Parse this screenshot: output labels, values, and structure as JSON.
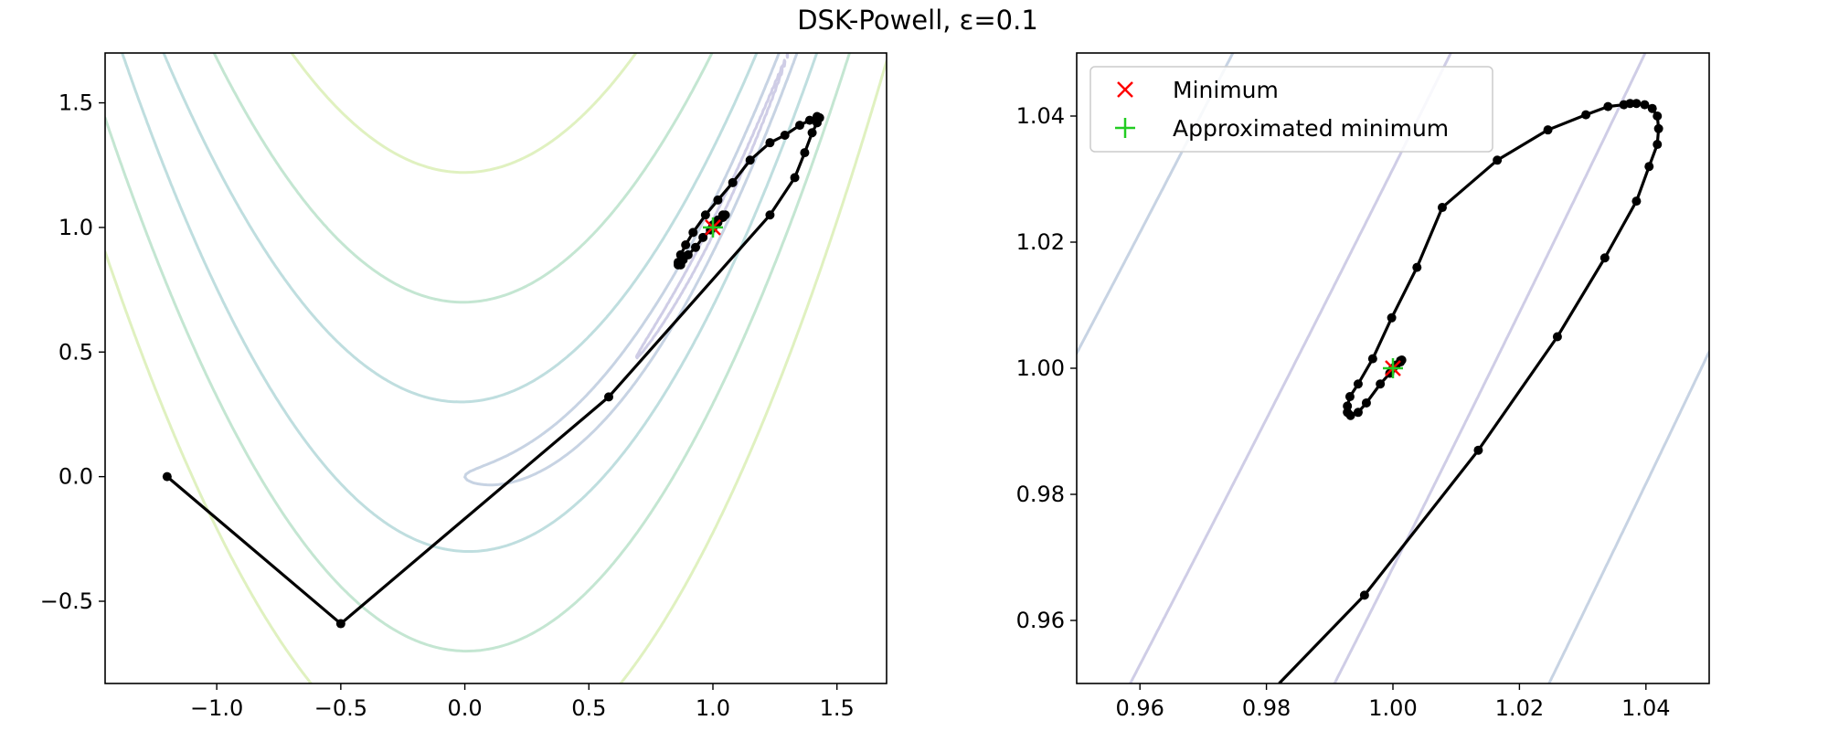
{
  "figure": {
    "title": "DSK-Powell, ε=0.1"
  },
  "colors": {
    "path": "#000000",
    "minimum_marker": "#ff0000",
    "approx_marker": "#22cc22",
    "contour_levels": [
      "#cfcde6",
      "#c7d3e3",
      "#bfdedf",
      "#c4e6d2",
      "#e0f1c0"
    ]
  },
  "chart_data": [
    {
      "type": "line",
      "name": "overview",
      "xlim": [
        -1.45,
        1.7
      ],
      "ylim": [
        -0.83,
        1.7
      ],
      "xticks": [
        -1.0,
        -0.5,
        0.0,
        0.5,
        1.0,
        1.5
      ],
      "xtick_labels": [
        "−1.0",
        "−0.5",
        "0.0",
        "0.5",
        "1.0",
        "1.5"
      ],
      "yticks": [
        -0.5,
        0.0,
        0.5,
        1.0,
        1.5
      ],
      "ytick_labels": [
        "−0.5",
        "0.0",
        "0.5",
        "1.0",
        "1.5"
      ],
      "grid": false,
      "contours": "Rosenbrock function f(x,y)=(1−x)²+100(y−x²)² level curves",
      "path": [
        [
          -1.2,
          0.0
        ],
        [
          -0.5,
          -0.59
        ],
        [
          0.58,
          0.32
        ],
        [
          1.23,
          1.05
        ],
        [
          1.33,
          1.2
        ],
        [
          1.37,
          1.3
        ],
        [
          1.4,
          1.38
        ],
        [
          1.42,
          1.42
        ],
        [
          1.43,
          1.44
        ],
        [
          1.42,
          1.445
        ],
        [
          1.39,
          1.43
        ],
        [
          1.35,
          1.41
        ],
        [
          1.29,
          1.37
        ],
        [
          1.23,
          1.34
        ],
        [
          1.15,
          1.27
        ],
        [
          1.08,
          1.18
        ],
        [
          1.02,
          1.11
        ],
        [
          0.97,
          1.05
        ],
        [
          0.92,
          0.98
        ],
        [
          0.89,
          0.93
        ],
        [
          0.87,
          0.89
        ],
        [
          0.86,
          0.86
        ],
        [
          0.86,
          0.85
        ],
        [
          0.87,
          0.85
        ],
        [
          0.88,
          0.87
        ],
        [
          0.9,
          0.89
        ],
        [
          0.93,
          0.92
        ],
        [
          0.96,
          0.96
        ],
        [
          0.99,
          0.99
        ],
        [
          1.02,
          1.02
        ],
        [
          1.04,
          1.04
        ],
        [
          1.05,
          1.05
        ],
        [
          1.04,
          1.05
        ],
        [
          1.02,
          1.03
        ],
        [
          1.0,
          1.01
        ],
        [
          0.99,
          0.99
        ],
        [
          0.995,
          0.995
        ],
        [
          1.0,
          1.0
        ]
      ],
      "minimum": [
        1.0,
        1.0
      ],
      "approx_minimum": [
        1.0,
        1.0
      ]
    },
    {
      "type": "line",
      "name": "zoom",
      "xlim": [
        0.95,
        1.05
      ],
      "ylim": [
        0.95,
        1.05
      ],
      "xticks": [
        0.96,
        0.98,
        1.0,
        1.02,
        1.04
      ],
      "xtick_labels": [
        "0.96",
        "0.98",
        "1.00",
        "1.02",
        "1.04"
      ],
      "yticks": [
        0.96,
        0.98,
        1.0,
        1.02,
        1.04
      ],
      "ytick_labels": [
        "0.96",
        "0.98",
        "1.00",
        "1.02",
        "1.04"
      ],
      "grid": false,
      "legend_position": "top-left",
      "legend": [
        {
          "label": "Minimum",
          "marker": "x"
        },
        {
          "label": "Approximated minimum",
          "marker": "+"
        }
      ],
      "path_line_only_start": [
        0.982,
        0.95
      ],
      "path": [
        [
          0.9955,
          0.964
        ],
        [
          1.0135,
          0.987
        ],
        [
          1.026,
          1.005
        ],
        [
          1.0335,
          1.0175
        ],
        [
          1.0385,
          1.0265
        ],
        [
          1.0405,
          1.032
        ],
        [
          1.0418,
          1.0355
        ],
        [
          1.042,
          1.038
        ],
        [
          1.0418,
          1.04
        ],
        [
          1.041,
          1.0412
        ],
        [
          1.0398,
          1.0418
        ],
        [
          1.0385,
          1.042
        ],
        [
          1.0375,
          1.042
        ],
        [
          1.0365,
          1.0418
        ],
        [
          1.034,
          1.0415
        ],
        [
          1.0305,
          1.0402
        ],
        [
          1.0245,
          1.0378
        ],
        [
          1.0165,
          1.033
        ],
        [
          1.0078,
          1.0255
        ],
        [
          1.0038,
          1.016
        ],
        [
          0.9998,
          1.008
        ],
        [
          0.9968,
          1.0015
        ],
        [
          0.9945,
          0.9975
        ],
        [
          0.9932,
          0.9955
        ],
        [
          0.9928,
          0.994
        ],
        [
          0.9928,
          0.993
        ],
        [
          0.9933,
          0.9925
        ],
        [
          0.9945,
          0.993
        ],
        [
          0.9958,
          0.9945
        ],
        [
          0.998,
          0.9975
        ],
        [
          0.9995,
          0.9992
        ],
        [
          1.0005,
          1.0005
        ],
        [
          1.0012,
          1.0012
        ],
        [
          1.0014,
          1.0013
        ],
        [
          1.0012,
          1.001
        ],
        [
          1.0,
          1.0
        ]
      ],
      "minimum": [
        1.0,
        1.0
      ],
      "approx_minimum": [
        1.0,
        1.0
      ]
    }
  ]
}
